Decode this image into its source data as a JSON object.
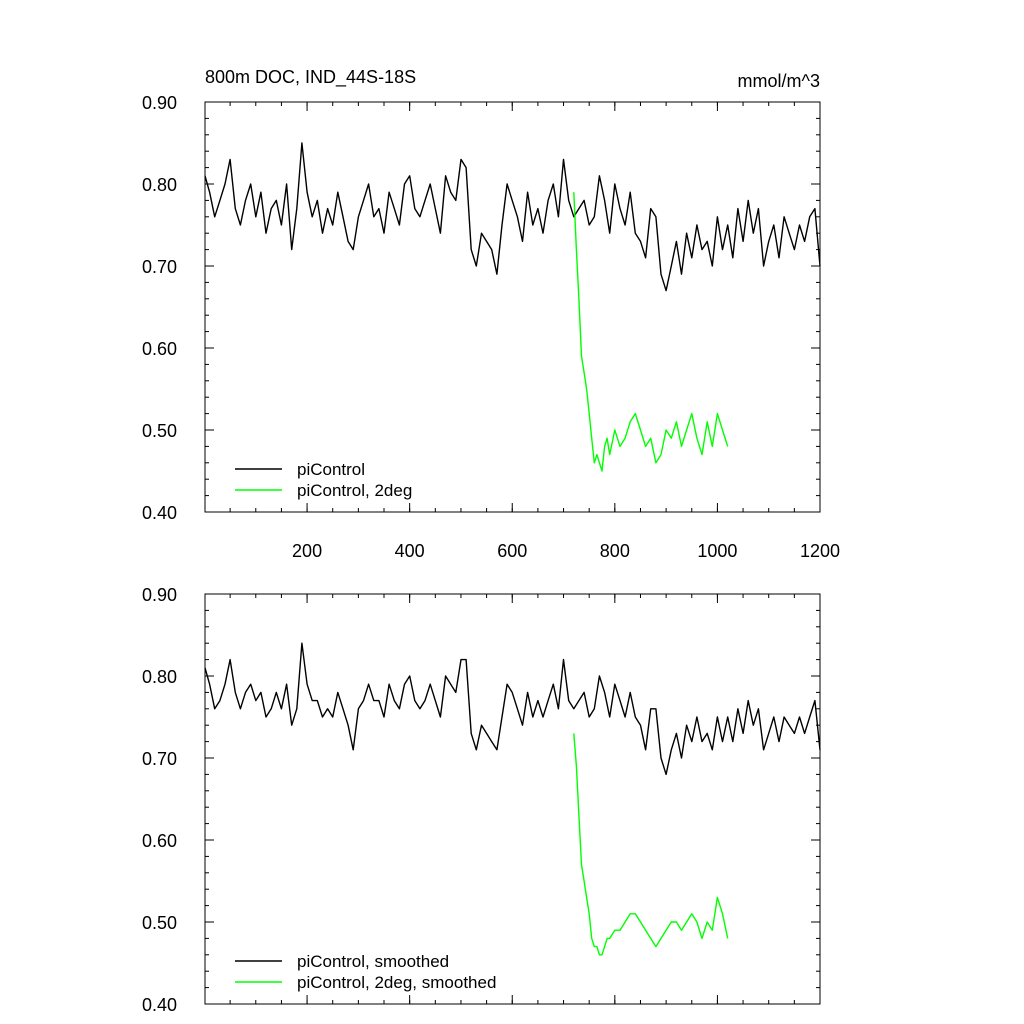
{
  "colors": {
    "control": "#000000",
    "twodeg": "#00ff00",
    "frame": "#000000"
  },
  "chart_data": [
    {
      "type": "line",
      "title": "800m DOC, IND_44S-18S",
      "units": "mmol/m^3",
      "xlim": [
        1,
        1200
      ],
      "ylim": [
        0.4,
        0.9
      ],
      "y_ticks": [
        0.4,
        0.5,
        0.6,
        0.7,
        0.8,
        0.9
      ],
      "y_tick_labels": [
        "0.40",
        "0.50",
        "0.60",
        "0.70",
        "0.80",
        "0.90"
      ],
      "x_ticks": [
        200,
        400,
        600,
        800,
        1000,
        1200
      ],
      "x_tick_labels": [
        "200",
        "400",
        "600",
        "800",
        "1000",
        "1200"
      ],
      "legend": "bottom-left",
      "series": [
        {
          "name": "piControl",
          "color": "#000000",
          "x": [
            1,
            10,
            20,
            30,
            40,
            50,
            60,
            70,
            80,
            90,
            100,
            110,
            120,
            130,
            140,
            150,
            160,
            170,
            180,
            190,
            200,
            210,
            220,
            230,
            240,
            250,
            260,
            270,
            280,
            290,
            300,
            310,
            320,
            330,
            340,
            350,
            360,
            370,
            380,
            390,
            400,
            410,
            420,
            430,
            440,
            450,
            460,
            470,
            480,
            490,
            500,
            510,
            520,
            530,
            540,
            550,
            560,
            570,
            580,
            590,
            600,
            610,
            620,
            630,
            640,
            650,
            660,
            670,
            680,
            690,
            700,
            710,
            720,
            730,
            740,
            750,
            760,
            770,
            780,
            790,
            800,
            810,
            820,
            830,
            840,
            850,
            860,
            870,
            880,
            890,
            900,
            910,
            920,
            930,
            940,
            950,
            960,
            970,
            980,
            990,
            1000,
            1010,
            1020,
            1030,
            1040,
            1050,
            1060,
            1070,
            1080,
            1090,
            1100,
            1110,
            1120,
            1130,
            1140,
            1150,
            1160,
            1170,
            1180,
            1190,
            1200
          ],
          "y": [
            0.81,
            0.79,
            0.76,
            0.78,
            0.8,
            0.83,
            0.77,
            0.75,
            0.78,
            0.8,
            0.76,
            0.79,
            0.74,
            0.77,
            0.78,
            0.75,
            0.8,
            0.72,
            0.77,
            0.85,
            0.79,
            0.76,
            0.78,
            0.74,
            0.77,
            0.75,
            0.79,
            0.76,
            0.73,
            0.72,
            0.76,
            0.78,
            0.8,
            0.76,
            0.77,
            0.74,
            0.79,
            0.77,
            0.75,
            0.8,
            0.81,
            0.77,
            0.76,
            0.78,
            0.8,
            0.77,
            0.74,
            0.81,
            0.79,
            0.78,
            0.83,
            0.82,
            0.72,
            0.7,
            0.74,
            0.73,
            0.72,
            0.69,
            0.75,
            0.8,
            0.78,
            0.76,
            0.73,
            0.79,
            0.75,
            0.77,
            0.74,
            0.78,
            0.8,
            0.76,
            0.83,
            0.78,
            0.76,
            0.77,
            0.78,
            0.75,
            0.76,
            0.81,
            0.78,
            0.74,
            0.8,
            0.77,
            0.75,
            0.79,
            0.74,
            0.73,
            0.71,
            0.77,
            0.76,
            0.69,
            0.67,
            0.7,
            0.73,
            0.69,
            0.74,
            0.71,
            0.75,
            0.72,
            0.73,
            0.7,
            0.76,
            0.72,
            0.75,
            0.71,
            0.77,
            0.73,
            0.78,
            0.74,
            0.77,
            0.7,
            0.73,
            0.75,
            0.71,
            0.76,
            0.74,
            0.72,
            0.75,
            0.73,
            0.76,
            0.77,
            0.7
          ]
        },
        {
          "name": "piControl, 2deg",
          "color": "#00ff00",
          "x": [
            720,
            725,
            730,
            735,
            740,
            745,
            750,
            755,
            760,
            765,
            770,
            775,
            780,
            785,
            790,
            800,
            810,
            820,
            830,
            840,
            850,
            860,
            870,
            880,
            890,
            900,
            910,
            920,
            930,
            940,
            950,
            960,
            970,
            980,
            990,
            1000,
            1010,
            1020
          ],
          "y": [
            0.79,
            0.72,
            0.66,
            0.59,
            0.57,
            0.55,
            0.52,
            0.49,
            0.46,
            0.47,
            0.46,
            0.45,
            0.48,
            0.49,
            0.47,
            0.5,
            0.48,
            0.49,
            0.51,
            0.52,
            0.5,
            0.48,
            0.49,
            0.46,
            0.47,
            0.5,
            0.49,
            0.51,
            0.48,
            0.5,
            0.52,
            0.49,
            0.47,
            0.51,
            0.48,
            0.52,
            0.5,
            0.48
          ]
        }
      ]
    },
    {
      "type": "line",
      "title": "",
      "xlim": [
        1,
        1200
      ],
      "ylim": [
        0.4,
        0.9
      ],
      "y_ticks": [
        0.4,
        0.5,
        0.6,
        0.7,
        0.8,
        0.9
      ],
      "y_tick_labels": [
        "0.40",
        "0.50",
        "0.60",
        "0.70",
        "0.80",
        "0.90"
      ],
      "x_ticks": [
        200,
        400,
        600,
        800,
        1000,
        1200
      ],
      "legend": "bottom-left",
      "series": [
        {
          "name": "piControl, smoothed",
          "color": "#000000",
          "x": [
            1,
            10,
            20,
            30,
            40,
            50,
            60,
            70,
            80,
            90,
            100,
            110,
            120,
            130,
            140,
            150,
            160,
            170,
            180,
            190,
            200,
            210,
            220,
            230,
            240,
            250,
            260,
            270,
            280,
            290,
            300,
            310,
            320,
            330,
            340,
            350,
            360,
            370,
            380,
            390,
            400,
            410,
            420,
            430,
            440,
            450,
            460,
            470,
            480,
            490,
            500,
            510,
            520,
            530,
            540,
            550,
            560,
            570,
            580,
            590,
            600,
            610,
            620,
            630,
            640,
            650,
            660,
            670,
            680,
            690,
            700,
            710,
            720,
            730,
            740,
            750,
            760,
            770,
            780,
            790,
            800,
            810,
            820,
            830,
            840,
            850,
            860,
            870,
            880,
            890,
            900,
            910,
            920,
            930,
            940,
            950,
            960,
            970,
            980,
            990,
            1000,
            1010,
            1020,
            1030,
            1040,
            1050,
            1060,
            1070,
            1080,
            1090,
            1100,
            1110,
            1120,
            1130,
            1140,
            1150,
            1160,
            1170,
            1180,
            1190,
            1200
          ],
          "y": [
            0.81,
            0.79,
            0.76,
            0.77,
            0.79,
            0.82,
            0.78,
            0.76,
            0.78,
            0.79,
            0.77,
            0.78,
            0.75,
            0.76,
            0.78,
            0.76,
            0.79,
            0.74,
            0.76,
            0.84,
            0.79,
            0.77,
            0.77,
            0.75,
            0.76,
            0.75,
            0.78,
            0.76,
            0.74,
            0.71,
            0.76,
            0.77,
            0.79,
            0.77,
            0.77,
            0.75,
            0.79,
            0.77,
            0.76,
            0.79,
            0.8,
            0.77,
            0.76,
            0.77,
            0.79,
            0.77,
            0.75,
            0.8,
            0.79,
            0.78,
            0.82,
            0.82,
            0.73,
            0.71,
            0.74,
            0.73,
            0.72,
            0.71,
            0.75,
            0.79,
            0.78,
            0.76,
            0.74,
            0.78,
            0.75,
            0.77,
            0.75,
            0.77,
            0.79,
            0.76,
            0.82,
            0.77,
            0.76,
            0.77,
            0.78,
            0.75,
            0.76,
            0.8,
            0.78,
            0.75,
            0.79,
            0.77,
            0.75,
            0.78,
            0.75,
            0.74,
            0.71,
            0.76,
            0.76,
            0.7,
            0.68,
            0.71,
            0.73,
            0.7,
            0.74,
            0.72,
            0.75,
            0.72,
            0.73,
            0.71,
            0.75,
            0.72,
            0.75,
            0.72,
            0.76,
            0.73,
            0.77,
            0.74,
            0.76,
            0.71,
            0.73,
            0.75,
            0.72,
            0.75,
            0.74,
            0.73,
            0.75,
            0.73,
            0.75,
            0.77,
            0.71
          ]
        },
        {
          "name": "piControl, 2deg, smoothed",
          "color": "#00ff00",
          "x": [
            720,
            725,
            730,
            735,
            740,
            745,
            750,
            755,
            760,
            765,
            770,
            775,
            780,
            785,
            790,
            800,
            810,
            820,
            830,
            840,
            850,
            860,
            870,
            880,
            890,
            900,
            910,
            920,
            930,
            940,
            950,
            960,
            970,
            980,
            990,
            1000,
            1010,
            1020
          ],
          "y": [
            0.73,
            0.69,
            0.63,
            0.57,
            0.55,
            0.53,
            0.51,
            0.48,
            0.47,
            0.47,
            0.46,
            0.46,
            0.47,
            0.48,
            0.48,
            0.49,
            0.49,
            0.5,
            0.51,
            0.51,
            0.5,
            0.49,
            0.48,
            0.47,
            0.48,
            0.49,
            0.5,
            0.5,
            0.49,
            0.5,
            0.51,
            0.5,
            0.48,
            0.5,
            0.49,
            0.53,
            0.51,
            0.48
          ]
        }
      ]
    }
  ]
}
